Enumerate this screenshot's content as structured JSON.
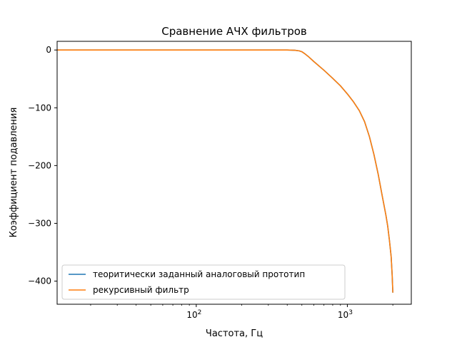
{
  "chart_data": {
    "type": "line",
    "title": "Сравнение АЧХ фильтров",
    "xlabel": "Частота, Гц",
    "ylabel": "Коэффициент подавления",
    "xscale": "log",
    "xlim": [
      12,
      2650
    ],
    "ylim": [
      -440,
      15
    ],
    "x_ticks": [
      {
        "value": 100,
        "base": "10",
        "exp": "2"
      },
      {
        "value": 1000,
        "base": "10",
        "exp": "3"
      }
    ],
    "y_ticks": [
      {
        "value": 0,
        "label": "0"
      },
      {
        "value": -100,
        "label": "−100"
      },
      {
        "value": -200,
        "label": "−200"
      },
      {
        "value": -300,
        "label": "−300"
      },
      {
        "value": -400,
        "label": "−400"
      }
    ],
    "grid": false,
    "legend_position": "lower-left",
    "series": [
      {
        "name": "теоритически заданный аналоговый прототип",
        "color": "#1f77b4",
        "x": [
          12,
          50,
          100,
          200,
          300,
          400,
          450,
          480,
          500,
          520,
          550,
          600,
          700,
          800,
          900,
          1000,
          1100,
          1200,
          1300,
          1400,
          1500,
          1600,
          1700,
          1800,
          1850,
          1900,
          1950,
          1980,
          2000
        ],
        "y": [
          0,
          0,
          0,
          0,
          0,
          0,
          -0.5,
          -1.5,
          -3,
          -6,
          -11,
          -20,
          -35,
          -49,
          -62,
          -76,
          -90,
          -105,
          -124,
          -150,
          -181,
          -215,
          -252,
          -286,
          -305,
          -330,
          -358,
          -390,
          -420
        ]
      },
      {
        "name": "рекурсивный фильтр",
        "color": "#ff7f0e",
        "x": [
          12,
          50,
          100,
          200,
          300,
          400,
          450,
          480,
          500,
          520,
          550,
          600,
          700,
          800,
          900,
          1000,
          1100,
          1200,
          1300,
          1400,
          1500,
          1600,
          1700,
          1800,
          1850,
          1900,
          1950,
          1980,
          2000
        ],
        "y": [
          0,
          0,
          0,
          0,
          0,
          0,
          -0.5,
          -1.5,
          -3,
          -6,
          -11,
          -20,
          -35,
          -49,
          -62,
          -76,
          -90,
          -105,
          -124,
          -150,
          -181,
          -215,
          -252,
          -286,
          -305,
          -330,
          -358,
          -390,
          -420
        ]
      }
    ]
  }
}
